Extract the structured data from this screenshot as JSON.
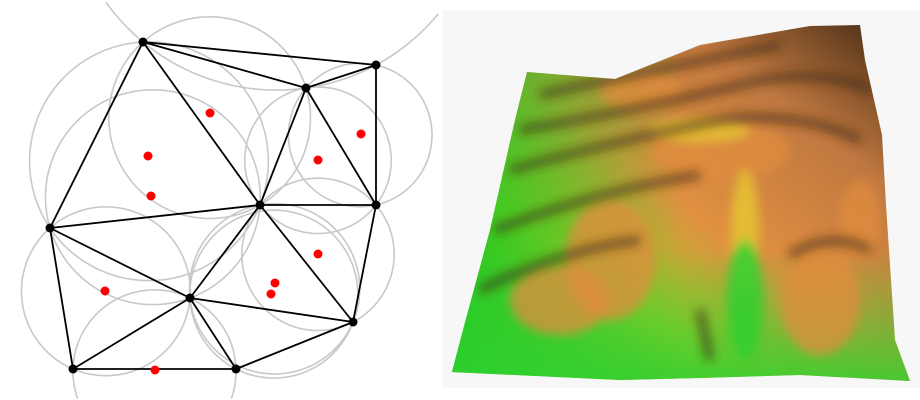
{
  "triangulation": {
    "edge_color": "#000000",
    "vertex_color": "#000000",
    "circumcircle_color": "#c8c8c8",
    "sample_point_color": "#ff0000"
  },
  "terrain": {
    "low_color": "#30d030",
    "mid_color": "#e8d030",
    "high_color": "#e08c3c",
    "ridge_shadow_color": "#3a2410",
    "background": "#f7f7f7"
  }
}
